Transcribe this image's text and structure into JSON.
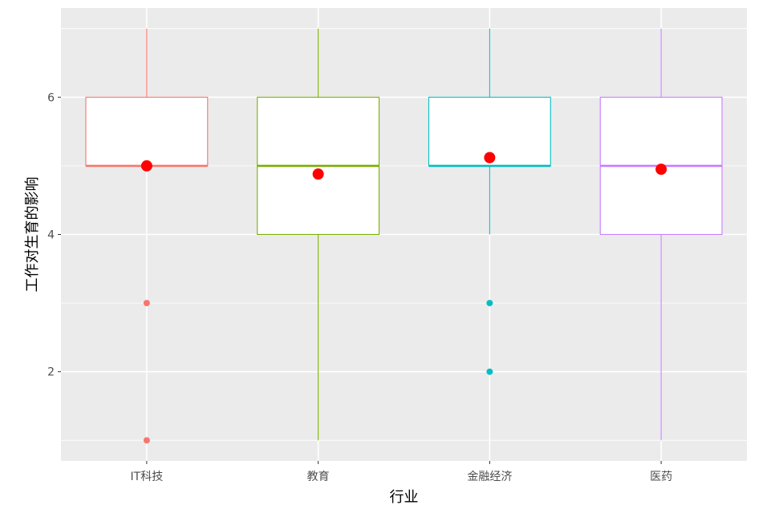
{
  "chart_data": {
    "type": "boxplot",
    "xlabel": "行业",
    "ylabel": "工作对生育的影响",
    "ylim": [
      0.7,
      7.3
    ],
    "y_ticks": [
      2,
      4,
      6
    ],
    "grid": true,
    "legend": "none",
    "categories": [
      "IT科技",
      "教育",
      "金融经济",
      "医药"
    ],
    "series": [
      {
        "category": "IT科技",
        "color": "#F8766D",
        "whisker_low": 5,
        "q1": 5,
        "median": 5,
        "q3": 6,
        "whisker_high": 7,
        "mean": 5.0,
        "outliers": [
          3,
          1
        ]
      },
      {
        "category": "教育",
        "color": "#7CAE00",
        "whisker_low": 1,
        "q1": 4,
        "median": 5,
        "q3": 6,
        "whisker_high": 7,
        "mean": 4.88,
        "outliers": []
      },
      {
        "category": "金融经济",
        "color": "#00BFC4",
        "whisker_low": 4,
        "q1": 5,
        "median": 5,
        "q3": 6,
        "whisker_high": 7,
        "mean": 5.12,
        "outliers": [
          3,
          2
        ]
      },
      {
        "category": "医药",
        "color": "#C77CFF",
        "whisker_low": 1,
        "q1": 4,
        "median": 5,
        "q3": 6,
        "whisker_high": 7,
        "mean": 4.95,
        "outliers": []
      }
    ],
    "mean_marker_color": "#FF0000",
    "panel_background": "#EBEBEB",
    "grid_color": "#FFFFFF"
  }
}
